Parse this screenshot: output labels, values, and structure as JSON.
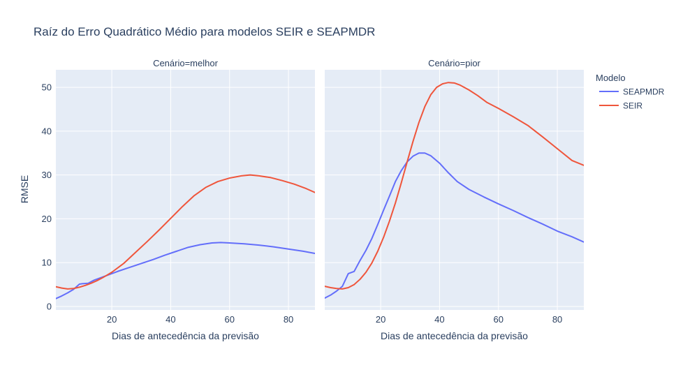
{
  "chart_data": {
    "type": "line",
    "title": "Raíz do Erro Quadrático Médio para modelos SEIR e SEAPMDR",
    "ylabel": "RMSE",
    "legend_title": "Modelo",
    "legend_position": "top-right",
    "grid": true,
    "xlim": [
      1,
      89
    ],
    "ylim": [
      -0.8,
      54
    ],
    "xticks": [
      20,
      40,
      60,
      80
    ],
    "yticks": [
      0,
      10,
      20,
      30,
      40,
      50
    ],
    "series_colors": {
      "SEAPMDR": "#636efa",
      "SEIR": "#ef553b"
    },
    "panels": [
      {
        "facet_label": "Cenário=melhor",
        "xlabel": "Dias de antecedência da previsão",
        "series": [
          {
            "name": "SEAPMDR",
            "x": [
              1,
              3,
              5,
              7,
              9,
              10,
              12,
              14,
              18,
              22,
              26,
              30,
              34,
              38,
              42,
              46,
              50,
              54,
              57,
              60,
              65,
              70,
              75,
              80,
              85,
              89
            ],
            "y": [
              1.8,
              2.4,
              3.1,
              3.9,
              5.1,
              5.2,
              5.3,
              6.0,
              7.0,
              8.0,
              8.9,
              9.8,
              10.7,
              11.7,
              12.6,
              13.5,
              14.1,
              14.5,
              14.6,
              14.5,
              14.3,
              14.0,
              13.6,
              13.1,
              12.6,
              12.1
            ]
          },
          {
            "name": "SEIR",
            "x": [
              1,
              3,
              5,
              7,
              9,
              11,
              13,
              15,
              17,
              20,
              24,
              28,
              32,
              36,
              40,
              44,
              48,
              52,
              56,
              60,
              64,
              67,
              70,
              74,
              78,
              82,
              86,
              89
            ],
            "y": [
              4.5,
              4.2,
              4.0,
              4.1,
              4.4,
              4.8,
              5.3,
              5.9,
              6.6,
              7.8,
              9.8,
              12.3,
              14.8,
              17.4,
              20.1,
              22.8,
              25.3,
              27.2,
              28.5,
              29.3,
              29.8,
              30.0,
              29.8,
              29.4,
              28.7,
              27.9,
              26.9,
              26.0
            ]
          }
        ]
      },
      {
        "facet_label": "Cenário=pior",
        "xlabel": "Dias de antecedência da previsão",
        "series": [
          {
            "name": "SEAPMDR",
            "x": [
              1,
              3,
              5,
              7,
              9,
              11,
              13,
              15,
              17,
              19,
              21,
              23,
              25,
              27,
              29,
              31,
              33,
              35,
              37,
              40,
              43,
              46,
              50,
              55,
              60,
              65,
              70,
              75,
              80,
              85,
              89
            ],
            "y": [
              1.9,
              2.6,
              3.5,
              4.6,
              7.5,
              8.0,
              10.5,
              12.8,
              15.5,
              18.7,
              22.0,
              25.2,
              28.5,
              31.0,
              33.0,
              34.3,
              35.0,
              35.0,
              34.4,
              32.7,
              30.5,
              28.5,
              26.7,
              25.0,
              23.4,
              21.9,
              20.3,
              18.8,
              17.2,
              15.9,
              14.7
            ]
          },
          {
            "name": "SEIR",
            "x": [
              1,
              3,
              5,
              7,
              9,
              11,
              13,
              15,
              17,
              19,
              21,
              23,
              25,
              27,
              29,
              31,
              33,
              35,
              37,
              39,
              41,
              43,
              45,
              47,
              50,
              53,
              56,
              60,
              65,
              70,
              75,
              80,
              85,
              89
            ],
            "y": [
              4.6,
              4.3,
              4.1,
              4.0,
              4.3,
              5.0,
              6.2,
              7.8,
              9.9,
              12.6,
              15.8,
              19.5,
              23.6,
              28.2,
              33.0,
              37.7,
              42.0,
              45.6,
              48.3,
              50.0,
              50.8,
              51.1,
              51.0,
              50.5,
              49.4,
              48.1,
              46.6,
              45.2,
              43.3,
              41.3,
              38.7,
              36.0,
              33.3,
              32.2
            ]
          }
        ]
      }
    ]
  }
}
